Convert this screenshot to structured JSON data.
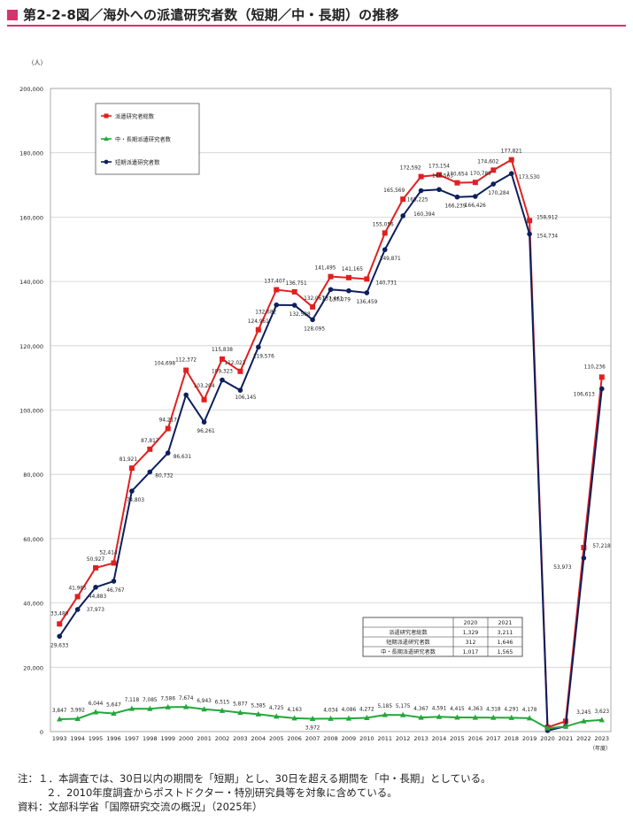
{
  "header": {
    "title": "第2-2-8図／海外への派遣研究者数（短期／中・長期）の推移"
  },
  "notes": {
    "line1": "注：１．本調査では、30日以内の期間を「短期」とし、30日を超える期間を「中・長期」としている。",
    "line2": "２．2010年度調査からポストドクター・特別研究員等を対象に含めている。",
    "line3": "資料：文部科学省「国際研究交流の概況」（2025年）"
  },
  "colors": {
    "total": "#e02020",
    "short": "#0d1f5c",
    "long": "#22a83a",
    "accent": "#d6336c"
  },
  "chart_data": {
    "type": "line",
    "title": "",
    "ylabel": "（人）",
    "xlabel": "（年度）",
    "ylim": [
      0,
      200000
    ],
    "yticks": [
      0,
      20000,
      40000,
      60000,
      80000,
      100000,
      120000,
      140000,
      160000,
      180000,
      200000
    ],
    "ytick_labels": [
      "0",
      "20,000",
      "40,000",
      "60,000",
      "80,000",
      "100,000",
      "120,000",
      "140,000",
      "160,000",
      "180,000",
      "200,000"
    ],
    "grid": true,
    "legend_position": "top-left",
    "x": [
      "1993",
      "1994",
      "1995",
      "1996",
      "1997",
      "1998",
      "1999",
      "2000",
      "2001",
      "2002",
      "2003",
      "2004",
      "2005",
      "2006",
      "2007",
      "2008",
      "2009",
      "2010",
      "2011",
      "2012",
      "2013",
      "2014",
      "2015",
      "2016",
      "2017",
      "2018",
      "2019",
      "2020",
      "2021",
      "2022",
      "2023"
    ],
    "series": [
      {
        "name": "派遣研究者総数",
        "color": "#e02020",
        "marker": "square",
        "values": [
          33480,
          41965,
          50927,
          52414,
          81921,
          87817,
          94217,
          112372,
          103204,
          115838,
          112022,
          124961,
          137407,
          136751,
          132067,
          141495,
          141165,
          140731,
          155056,
          165569,
          172592,
          173154,
          170654,
          170789,
          174602,
          177821,
          158912,
          1329,
          3211,
          57218,
          110236
        ],
        "labels": [
          "33,480",
          "41,965",
          "50,927",
          "52,414",
          "81,921",
          "87,817",
          "94,217",
          "112,372",
          "103,204",
          "115,838",
          "112,022",
          "124,961",
          "137,407",
          "136,751",
          "132,067",
          "141,495",
          "141,165",
          "140,731",
          "155,056",
          "165,569",
          "172,592",
          "173,154",
          "170,654",
          "170,789",
          "174,602",
          "177,821",
          "158,912",
          "",
          "",
          "57,218",
          "110,236"
        ]
      },
      {
        "name": "中・長期派遣研究者数",
        "color": "#22a83a",
        "marker": "triangle",
        "values": [
          3847,
          3992,
          6044,
          5647,
          7118,
          7085,
          7586,
          7674,
          6943,
          6515,
          5877,
          5385,
          4725,
          4163,
          3972,
          4034,
          4086,
          4272,
          5185,
          5175,
          4367,
          4591,
          4415,
          4363,
          4318,
          4291,
          4178,
          1017,
          1565,
          3245,
          3623
        ],
        "labels": [
          "3,847",
          "3,992",
          "6,044",
          "5,647",
          "7,118",
          "7,085",
          "7,586",
          "7,674",
          "6,943",
          "6,515",
          "5,877",
          "5,385",
          "4,725",
          "4,163",
          "3,972",
          "4,034",
          "4,086",
          "4,272",
          "5,185",
          "5,175",
          "4,367",
          "4,591",
          "4,415",
          "4,363",
          "4,318",
          "4,291",
          "4,178",
          "",
          "",
          "3,245",
          "3,623"
        ]
      },
      {
        "name": "短期派遣研究者数",
        "color": "#0d1f5c",
        "marker": "circle",
        "values": [
          29633,
          37973,
          44883,
          46767,
          74803,
          80732,
          86631,
          104698,
          96261,
          109323,
          106145,
          119576,
          132682,
          132588,
          128095,
          137461,
          137079,
          136459,
          149871,
          160394,
          168225,
          168563,
          166239,
          166426,
          170284,
          173530,
          154734,
          312,
          1646,
          53973,
          106613
        ],
        "labels": [
          "29,633",
          "37,973",
          "44,883",
          "46,767",
          "74,803",
          "80,732",
          "86,631",
          "104,698",
          "96,261",
          "109,323",
          "106,145",
          "119,576",
          "132,682",
          "132,588",
          "128,095",
          "137,461",
          "137,079",
          "136,459",
          "149,871",
          "160,394",
          "168,225",
          "168,563",
          "166,239",
          "166,426",
          "170,284",
          "173,530",
          "154,734",
          "",
          "",
          "53,973",
          "106,613"
        ]
      }
    ],
    "inset_table": {
      "header": [
        "",
        "2020",
        "2021"
      ],
      "rows": [
        [
          "派遣研究者総数",
          "1,329",
          "3,211"
        ],
        [
          "短期派遣研究者数",
          "312",
          "1,646"
        ],
        [
          "中・長期派遣研究者数",
          "1,017",
          "1,565"
        ]
      ]
    }
  }
}
